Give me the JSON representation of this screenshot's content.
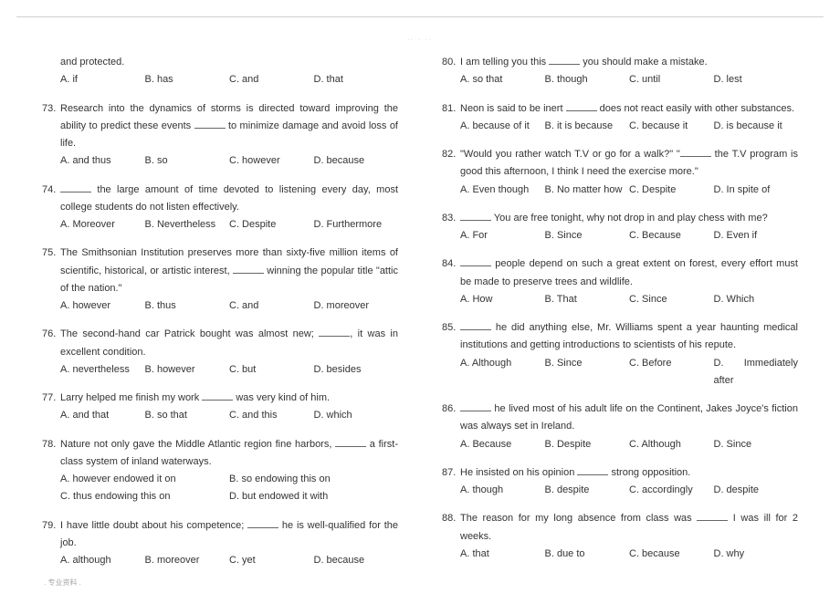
{
  "header_text": "..        .        ..",
  "footer_text": ". 专业资料 .",
  "left_fragment": "and protected.",
  "left_fragment_opts": [
    "A. if",
    "B. has",
    "C. and",
    "D. that"
  ],
  "left": [
    {
      "n": "73.",
      "stem": "Research into the dynamics of storms is directed toward improving the ability to predict these events ___ to minimize damage and avoid loss of life.",
      "opts": [
        "A. and thus",
        "B. so",
        "C. however",
        "D. because"
      ],
      "cols": 4
    },
    {
      "n": "74.",
      "stem": "___ the large amount of time devoted to listening every day, most college students do not listen effectively.",
      "opts": [
        "A. Moreover",
        "B. Nevertheless",
        "C. Despite",
        "D. Furthermore"
      ],
      "cols": 4
    },
    {
      "n": "75.",
      "stem": "The Smithsonian Institution preserves more than sixty-five million items of scientific, historical, or artistic interest, ___ winning the popular title \"attic of the nation.\"",
      "opts": [
        "A. however",
        "B. thus",
        "C. and",
        "D. moreover"
      ],
      "cols": 4
    },
    {
      "n": "76.",
      "stem": "The second-hand car Patrick bought was almost new; ___, it was in excellent condition.",
      "opts": [
        "A. nevertheless",
        "B. however",
        "C. but",
        "D. besides"
      ],
      "cols": 4
    },
    {
      "n": "77.",
      "stem": "Larry helped me finish my work ___ was very kind of him.",
      "opts": [
        "A. and that",
        "B. so that",
        "C. and this",
        "D. which"
      ],
      "cols": 4
    },
    {
      "n": "78.",
      "stem": "Nature not only gave the Middle Atlantic region fine harbors, ___ a first-class system of inland waterways.",
      "opts": [
        "A. however endowed it on",
        "B. so endowing this on",
        "C. thus endowing this on",
        "D. but endowed it with"
      ],
      "cols": 2
    },
    {
      "n": "79.",
      "stem": "I have little doubt about his competence; ___ he is well-qualified for the job.",
      "opts": [
        "A. although",
        "B. moreover",
        "C. yet",
        "D. because"
      ],
      "cols": 4
    }
  ],
  "right": [
    {
      "n": "80.",
      "stem": "I am telling you this ___ you should make a mistake.",
      "opts": [
        "A. so that",
        "B. though",
        "C. until",
        "D. lest"
      ],
      "cols": 4
    },
    {
      "n": "81.",
      "stem": "Neon is said to be inert ___ does not react easily with other substances.",
      "opts": [
        "A. because of it",
        "B. it is because",
        "C. because it",
        "D. is because it"
      ],
      "cols": 4
    },
    {
      "n": "82.",
      "stem": "\"Would you rather watch T.V or go for a walk?\" \"___ the T.V program is good this afternoon, I think I need the exercise more.\"",
      "opts": [
        "A. Even though",
        "B. No matter how",
        "C. Despite",
        "D. In spite of"
      ],
      "cols": 4
    },
    {
      "n": "83.",
      "stem": "___ You are free tonight, why not drop in and play chess with me?",
      "opts": [
        "A. For",
        "B. Since",
        "C. Because",
        "D. Even if"
      ],
      "cols": 4
    },
    {
      "n": "84.",
      "stem": "___ people depend on such a great extent on forest, every effort must be made to preserve trees and wildlife.",
      "opts": [
        "A. How",
        "B. That",
        "C. Since",
        "D. Which"
      ],
      "cols": 4
    },
    {
      "n": "85.",
      "stem": "___ he did anything else, Mr. Williams spent a year haunting medical institutions and getting introductions to scientists of his repute.",
      "opts": [
        "A. Although",
        "B. Since",
        "C. Before",
        "D. Immediately after"
      ],
      "cols": 4
    },
    {
      "n": "86.",
      "stem": "___ he lived most of his adult life on the Continent, Jakes Joyce's fiction was always set in Ireland.",
      "opts": [
        "A. Because",
        "B. Despite",
        "C. Although",
        "D. Since"
      ],
      "cols": 4
    },
    {
      "n": "87.",
      "stem": "He insisted on his opinion ___ strong opposition.",
      "opts": [
        "A. though",
        "B. despite",
        "C. accordingly",
        "D. despite"
      ],
      "cols": 4
    },
    {
      "n": "88.",
      "stem": "The reason for my long absence from class was ___ I was ill for 2 weeks.",
      "opts": [
        "A. that",
        "B. due to",
        "C. because",
        "D. why"
      ],
      "cols": 4
    }
  ]
}
